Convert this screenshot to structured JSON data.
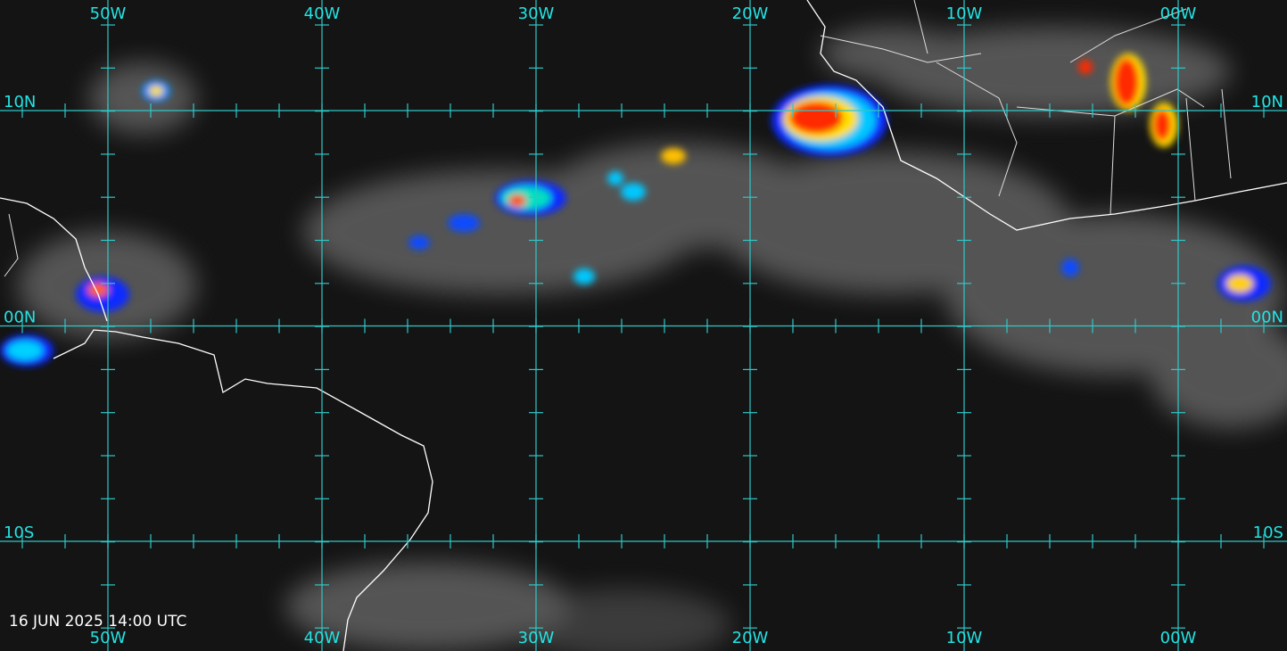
{
  "lon_labels": [
    "50W",
    "40W",
    "30W",
    "20W",
    "10W",
    "00W"
  ],
  "lat_labels": [
    "10N",
    "00N",
    "10S"
  ],
  "timestamp": "16 JUN 2025 14:00 UTC"
}
